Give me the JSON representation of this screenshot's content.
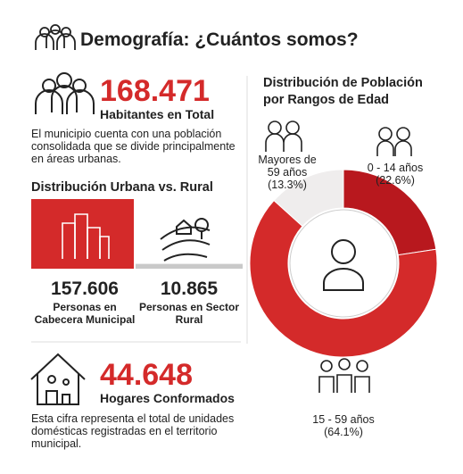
{
  "header": {
    "title": "Demografía: ¿Cuántos somos?"
  },
  "population": {
    "value": "168.471",
    "label": "Habitantes en Total",
    "description": "El municipio cuenta con una población consolidada que se divide principalmente en áreas urbanas."
  },
  "urban_rural": {
    "type": "bar",
    "title": "Distribución Urbana vs. Rural",
    "categories": [
      "Personas en Cabecera Municipal",
      "Personas en Sector Rural"
    ],
    "values": [
      157606,
      10865
    ],
    "value_labels": [
      "157.606",
      "10.865"
    ],
    "colors": [
      "#d42a2a",
      "#c9c9c9"
    ]
  },
  "households": {
    "value": "44.648",
    "label": "Hogares Conformados",
    "description": "Esta cifra representa el total de unidades domésticas registradas en el territorio municipal."
  },
  "age_distribution": {
    "type": "donut",
    "title": "Distribución de Población por Rangos de Edad",
    "categories": [
      "0 - 14 años",
      "15 - 59 años",
      "Mayores de 59 años"
    ],
    "values": [
      22.6,
      64.1,
      13.3
    ],
    "value_labels": [
      "(22.6%)",
      "(64.1%)",
      "(13.3%)"
    ],
    "colors": [
      "#b8181e",
      "#d42a2a",
      "#efeded"
    ]
  }
}
